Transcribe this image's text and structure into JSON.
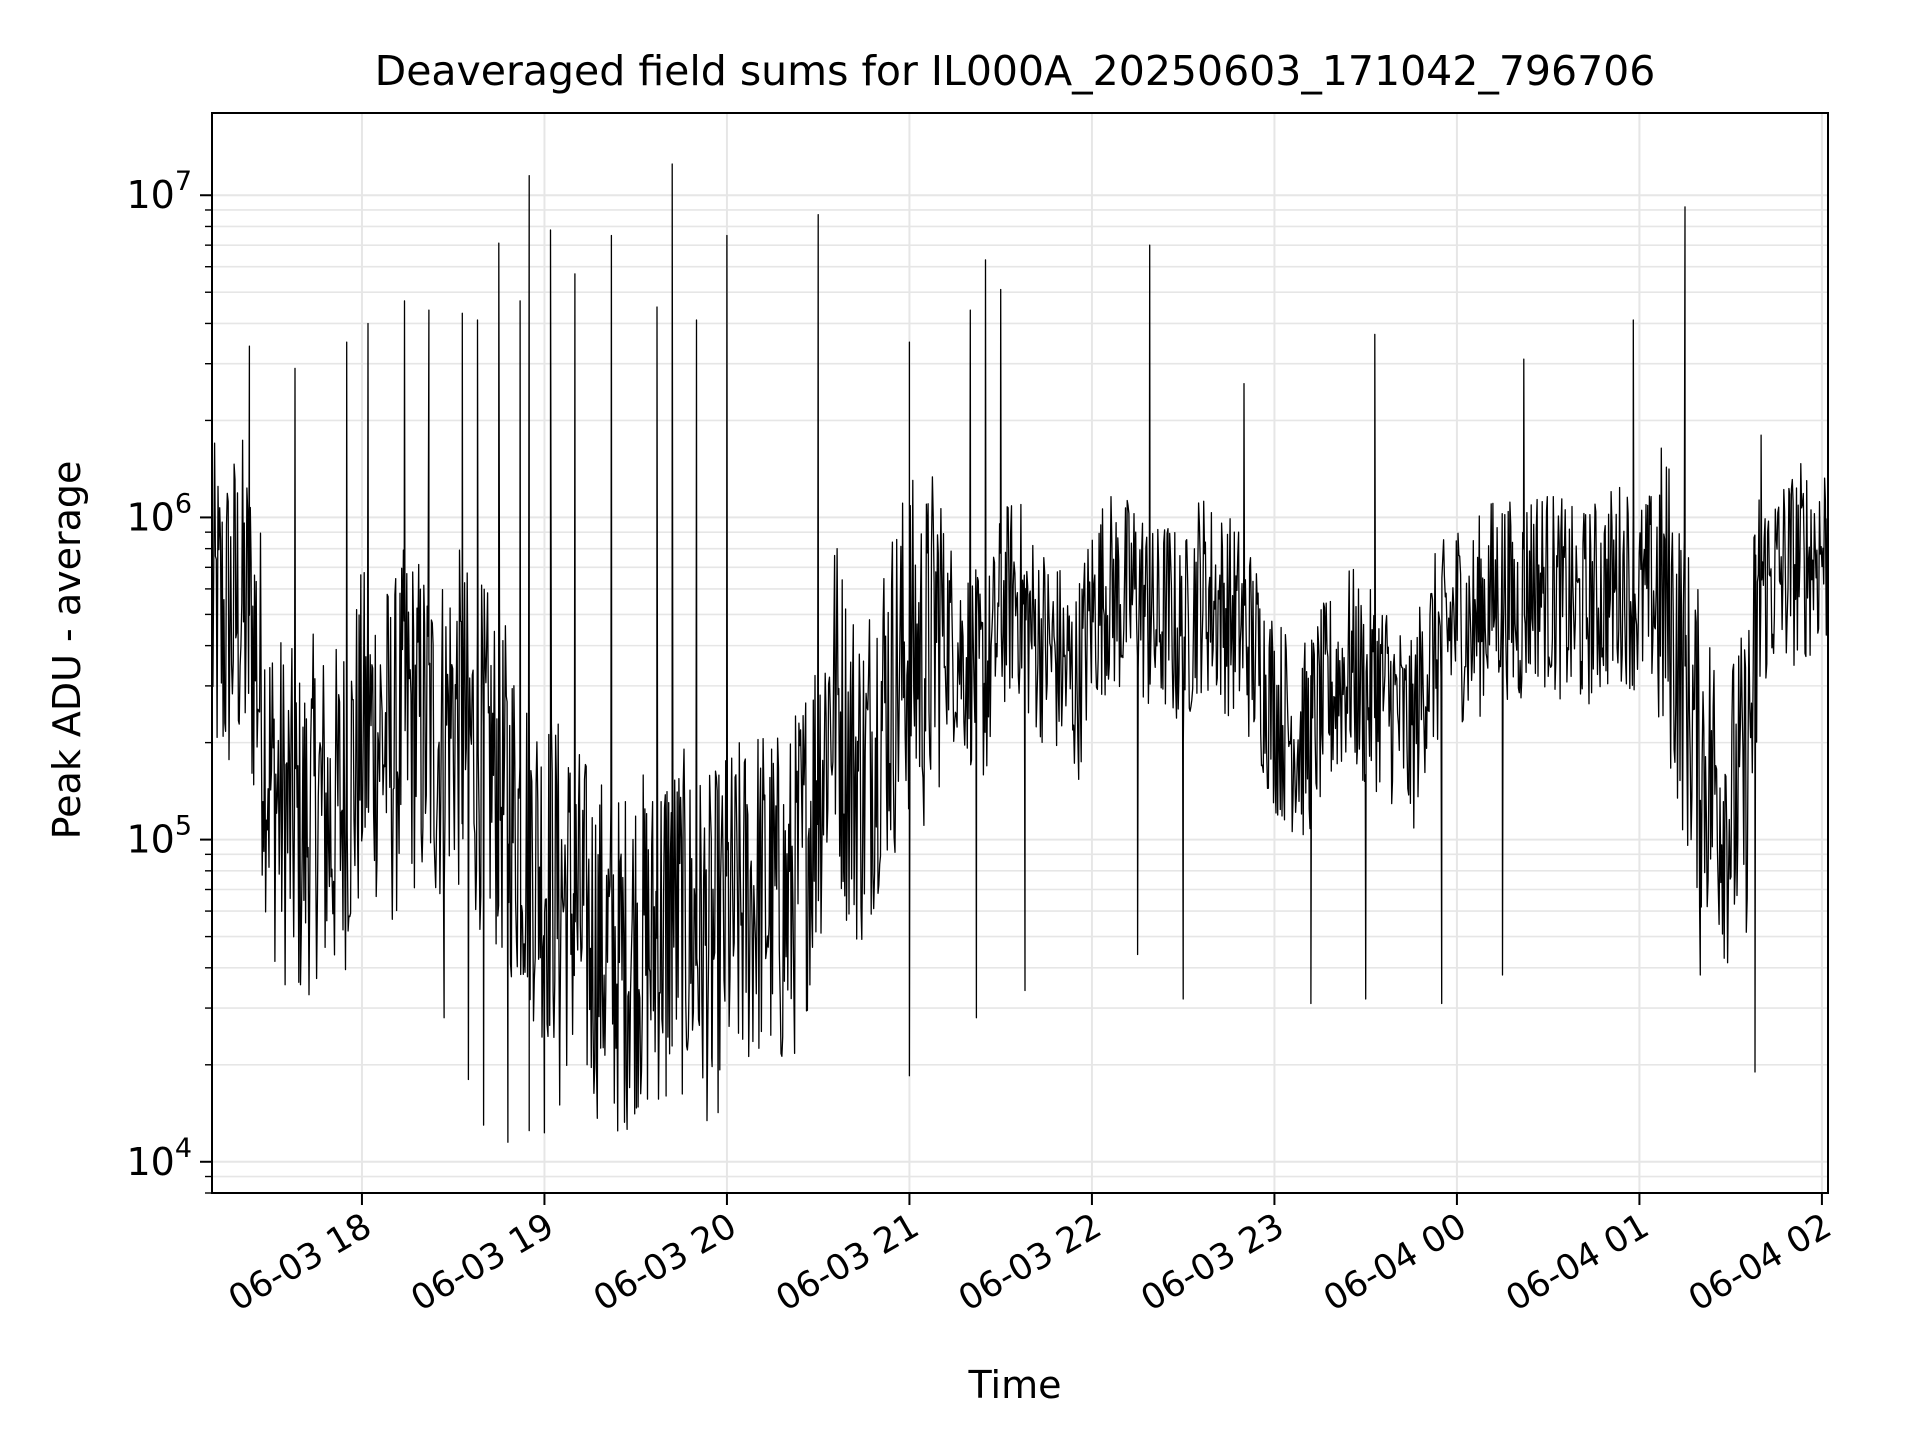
{
  "chart_data": {
    "type": "line",
    "title": "Deaveraged field sums for IL000A_20250603_171042_796706",
    "xlabel": "Time",
    "ylabel": "Peak ADU - average",
    "y_scale": "log",
    "ylim": [
      8000,
      18000000
    ],
    "xlim": [
      "2025-06-03 17:10:42",
      "2025-06-04 02:02:00"
    ],
    "x_ticks": [
      "06-03 18",
      "06-03 19",
      "06-03 20",
      "06-03 21",
      "06-03 22",
      "06-03 23",
      "06-04 00",
      "06-04 01",
      "06-04 02"
    ],
    "y_ticks": [
      {
        "base": "10",
        "exp": "4",
        "value": 10000
      },
      {
        "base": "10",
        "exp": "5",
        "value": 100000
      },
      {
        "base": "10",
        "exp": "6",
        "value": 1000000
      },
      {
        "base": "10",
        "exp": "7",
        "value": 10000000
      }
    ],
    "grid": true,
    "line_color": "#000000",
    "grid_color": "#e6e6e6",
    "series": [
      {
        "x": [
          "2025-06-03 17:10",
          "2025-06-03 17:15",
          "2025-06-03 17:20",
          "2025-06-03 17:25",
          "2025-06-03 17:30",
          "2025-06-03 17:35",
          "2025-06-03 17:40",
          "2025-06-03 17:45",
          "2025-06-03 17:50",
          "2025-06-03 17:55",
          "2025-06-03 18:00",
          "2025-06-03 18:05",
          "2025-06-03 18:10",
          "2025-06-03 18:15",
          "2025-06-03 18:20",
          "2025-06-03 18:25",
          "2025-06-03 18:30",
          "2025-06-03 18:35",
          "2025-06-03 18:40",
          "2025-06-03 18:45",
          "2025-06-03 18:50",
          "2025-06-03 18:55",
          "2025-06-03 19:00",
          "2025-06-03 19:05",
          "2025-06-03 19:10",
          "2025-06-03 19:15",
          "2025-06-03 19:20",
          "2025-06-03 19:25",
          "2025-06-03 19:30",
          "2025-06-03 19:35",
          "2025-06-03 19:40",
          "2025-06-03 19:45",
          "2025-06-03 19:50",
          "2025-06-03 19:55",
          "2025-06-03 20:00",
          "2025-06-03 20:05",
          "2025-06-03 20:10",
          "2025-06-03 20:15",
          "2025-06-03 20:20",
          "2025-06-03 20:25",
          "2025-06-03 20:30",
          "2025-06-03 20:35",
          "2025-06-03 20:40",
          "2025-06-03 20:45",
          "2025-06-03 20:50",
          "2025-06-03 20:55",
          "2025-06-03 21:00",
          "2025-06-03 21:05",
          "2025-06-03 21:10",
          "2025-06-03 21:15",
          "2025-06-03 21:20",
          "2025-06-03 21:25",
          "2025-06-03 21:30",
          "2025-06-03 21:35",
          "2025-06-03 21:40",
          "2025-06-03 21:45",
          "2025-06-03 21:50",
          "2025-06-03 21:55",
          "2025-06-03 22:00",
          "2025-06-03 22:05",
          "2025-06-03 22:10",
          "2025-06-03 22:15",
          "2025-06-03 22:20",
          "2025-06-03 22:25",
          "2025-06-03 22:30",
          "2025-06-03 22:35",
          "2025-06-03 22:40",
          "2025-06-03 22:45",
          "2025-06-03 22:50",
          "2025-06-03 22:55",
          "2025-06-03 23:00",
          "2025-06-03 23:05",
          "2025-06-03 23:10",
          "2025-06-03 23:15",
          "2025-06-03 23:20",
          "2025-06-03 23:25",
          "2025-06-03 23:30",
          "2025-06-03 23:35",
          "2025-06-03 23:40",
          "2025-06-03 23:45",
          "2025-06-03 23:50",
          "2025-06-03 23:55",
          "2025-06-04 00:00",
          "2025-06-04 00:05",
          "2025-06-04 00:10",
          "2025-06-04 00:15",
          "2025-06-04 00:20",
          "2025-06-04 00:25",
          "2025-06-04 00:30",
          "2025-06-04 00:35",
          "2025-06-04 00:40",
          "2025-06-04 00:45",
          "2025-06-04 00:50",
          "2025-06-04 00:55",
          "2025-06-04 01:00",
          "2025-06-04 01:05",
          "2025-06-04 01:10",
          "2025-06-04 01:15",
          "2025-06-04 01:20",
          "2025-06-04 01:25",
          "2025-06-04 01:30",
          "2025-06-04 01:35",
          "2025-06-04 01:40",
          "2025-06-04 01:45",
          "2025-06-04 01:50",
          "2025-06-04 01:55",
          "2025-06-04 02:00"
        ],
        "y": [
          500000,
          450000,
          550000,
          400000,
          150000,
          120000,
          100000,
          130000,
          110000,
          140000,
          200000,
          220000,
          180000,
          250000,
          220000,
          200000,
          250000,
          200000,
          180000,
          150000,
          120000,
          100000,
          80000,
          70000,
          60000,
          50000,
          45000,
          40000,
          50000,
          45000,
          60000,
          55000,
          50000,
          45000,
          55000,
          60000,
          70000,
          65000,
          60000,
          90000,
          150000,
          300000,
          180000,
          150000,
          250000,
          300000,
          400000,
          350000,
          500000,
          400000,
          350000,
          300000,
          500000,
          600000,
          450000,
          400000,
          350000,
          300000,
          500000,
          600000,
          550000,
          600000,
          450000,
          500000,
          400000,
          600000,
          550000,
          500000,
          450000,
          350000,
          250000,
          220000,
          200000,
          250000,
          300000,
          350000,
          280000,
          300000,
          250000,
          200000,
          350000,
          400000,
          500000,
          450000,
          550000,
          600000,
          500000,
          650000,
          600000,
          550000,
          500000,
          550000,
          600000,
          650000,
          550000,
          600000,
          500000,
          300000,
          180000,
          150000,
          120000,
          150000,
          600000,
          650000,
          700000,
          750000,
          800000
        ],
        "spikes_high": [
          {
            "x": "2025-06-03 17:23",
            "y": 3400000
          },
          {
            "x": "2025-06-03 17:38",
            "y": 2900000
          },
          {
            "x": "2025-06-03 17:55",
            "y": 3500000
          },
          {
            "x": "2025-06-03 18:02",
            "y": 4000000
          },
          {
            "x": "2025-06-03 18:14",
            "y": 4700000
          },
          {
            "x": "2025-06-03 18:22",
            "y": 4400000
          },
          {
            "x": "2025-06-03 18:33",
            "y": 4300000
          },
          {
            "x": "2025-06-03 18:38",
            "y": 4100000
          },
          {
            "x": "2025-06-03 18:45",
            "y": 7100000
          },
          {
            "x": "2025-06-03 18:52",
            "y": 4700000
          },
          {
            "x": "2025-06-03 18:55",
            "y": 11500000
          },
          {
            "x": "2025-06-03 19:02",
            "y": 7800000
          },
          {
            "x": "2025-06-03 19:10",
            "y": 5700000
          },
          {
            "x": "2025-06-03 19:22",
            "y": 7500000
          },
          {
            "x": "2025-06-03 19:37",
            "y": 4500000
          },
          {
            "x": "2025-06-03 19:42",
            "y": 12500000
          },
          {
            "x": "2025-06-03 19:50",
            "y": 4100000
          },
          {
            "x": "2025-06-03 20:00",
            "y": 7500000
          },
          {
            "x": "2025-06-03 20:30",
            "y": 8700000
          },
          {
            "x": "2025-06-03 21:00",
            "y": 3500000
          },
          {
            "x": "2025-06-03 21:20",
            "y": 4400000
          },
          {
            "x": "2025-06-03 21:25",
            "y": 6300000
          },
          {
            "x": "2025-06-03 21:30",
            "y": 5100000
          },
          {
            "x": "2025-06-03 22:19",
            "y": 7000000
          },
          {
            "x": "2025-06-03 22:50",
            "y": 2600000
          },
          {
            "x": "2025-06-03 23:33",
            "y": 3700000
          },
          {
            "x": "2025-06-04 00:22",
            "y": 3100000
          },
          {
            "x": "2025-06-04 00:58",
            "y": 4100000
          },
          {
            "x": "2025-06-04 01:15",
            "y": 9200000
          },
          {
            "x": "2025-06-04 01:40",
            "y": 1800000
          }
        ],
        "spikes_low": [
          {
            "x": "2025-06-03 18:27",
            "y": 28000
          },
          {
            "x": "2025-06-03 18:35",
            "y": 18000
          },
          {
            "x": "2025-06-03 18:40",
            "y": 13000
          },
          {
            "x": "2025-06-03 18:48",
            "y": 11500
          },
          {
            "x": "2025-06-03 18:55",
            "y": 12500
          },
          {
            "x": "2025-06-03 19:00",
            "y": 12300
          },
          {
            "x": "2025-06-03 19:05",
            "y": 15000
          },
          {
            "x": "2025-06-03 19:40",
            "y": 16000
          },
          {
            "x": "2025-06-03 19:55",
            "y": 21000
          },
          {
            "x": "2025-06-03 21:00",
            "y": 18500
          },
          {
            "x": "2025-06-03 21:22",
            "y": 28000
          },
          {
            "x": "2025-06-03 21:38",
            "y": 34000
          },
          {
            "x": "2025-06-03 22:15",
            "y": 44000
          },
          {
            "x": "2025-06-03 22:30",
            "y": 32000
          },
          {
            "x": "2025-06-03 23:12",
            "y": 31000
          },
          {
            "x": "2025-06-03 23:30",
            "y": 32000
          },
          {
            "x": "2025-06-03 23:55",
            "y": 31000
          },
          {
            "x": "2025-06-04 00:15",
            "y": 38000
          },
          {
            "x": "2025-06-04 01:20",
            "y": 38000
          },
          {
            "x": "2025-06-04 01:38",
            "y": 19000
          }
        ]
      }
    ]
  }
}
